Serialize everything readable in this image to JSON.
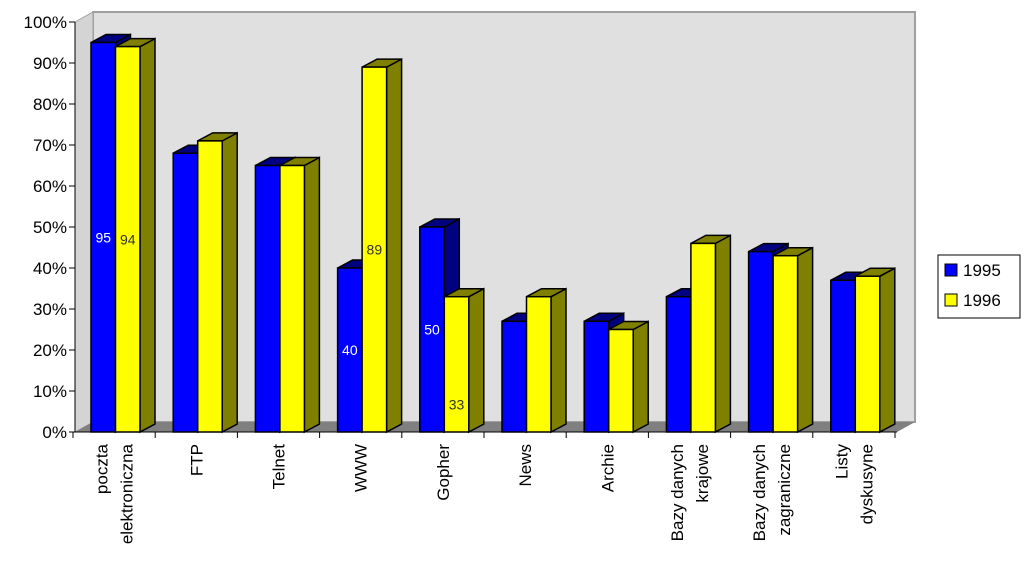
{
  "chart_data": {
    "type": "bar",
    "title": "",
    "xlabel": "",
    "ylabel": "",
    "ylim": [
      0,
      100
    ],
    "y_ticks": [
      "0%",
      "10%",
      "20%",
      "30%",
      "40%",
      "50%",
      "60%",
      "70%",
      "80%",
      "90%",
      "100%"
    ],
    "categories": [
      [
        "poczta",
        "elektroniczna"
      ],
      [
        "FTP"
      ],
      [
        "Telnet"
      ],
      [
        "WWW"
      ],
      [
        "Gopher"
      ],
      [
        "News"
      ],
      [
        "Archie"
      ],
      [
        "Bazy danych",
        "krajowe"
      ],
      [
        "Bazy danych",
        "zagraniczne"
      ],
      [
        "Listy",
        "dyskusyne"
      ]
    ],
    "series": [
      {
        "name": "1995",
        "color": "#0000ff",
        "side_color": "#000080",
        "values": [
          95,
          68,
          65,
          40,
          50,
          27,
          27,
          33,
          44,
          37
        ],
        "data_labels": [
          "95",
          null,
          null,
          "40",
          "50",
          null,
          null,
          null,
          null,
          null
        ]
      },
      {
        "name": "1996",
        "color": "#ffff00",
        "side_color": "#808000",
        "values": [
          94,
          71,
          65,
          89,
          33,
          33,
          25,
          46,
          43,
          38
        ],
        "data_labels": [
          "94",
          null,
          null,
          "89",
          "33",
          null,
          null,
          null,
          null,
          null
        ]
      }
    ],
    "legend_position": "right",
    "grid": false,
    "wall_color": "#e0e0e0",
    "floor_color": "#808080"
  }
}
